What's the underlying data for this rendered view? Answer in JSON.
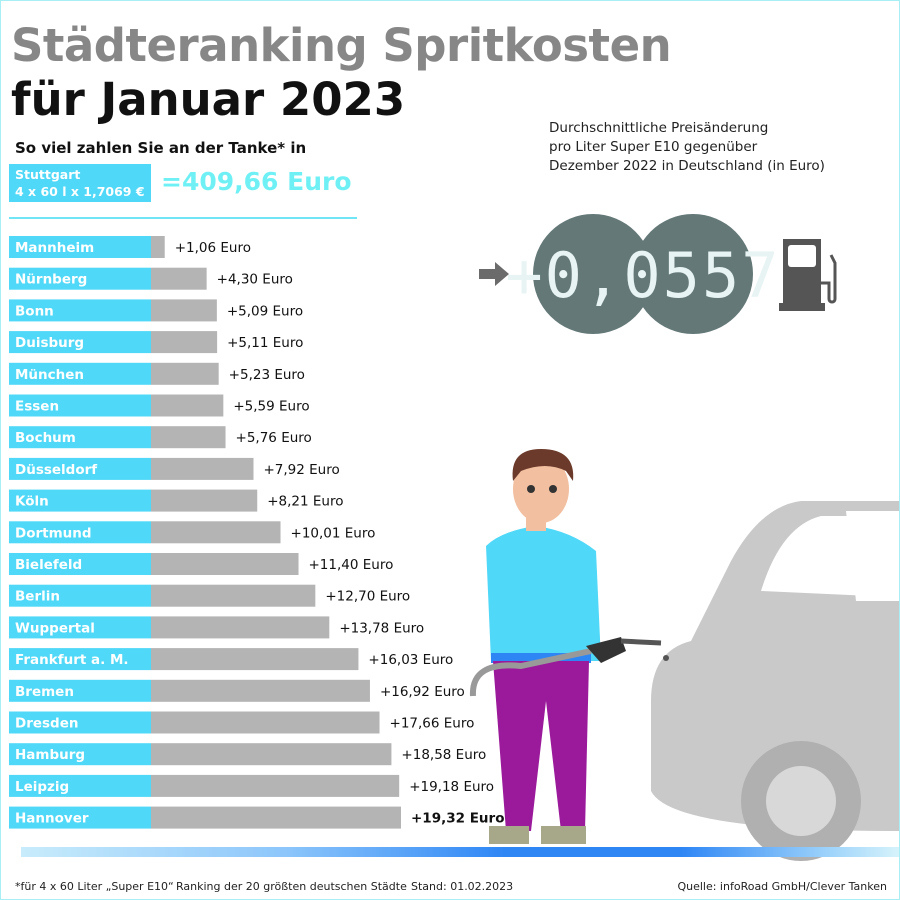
{
  "title_line1": "Städteranking Spritkosten",
  "title_line2": "für Januar 2023",
  "subtitle": "So viel zahlen Sie an der Tanke* in",
  "reference": {
    "city": "Stuttgart",
    "formula": "4 x 60 l x 1,7069 €",
    "total": "=409,66 Euro"
  },
  "side_note": [
    "Durchschnittliche Preisänderung",
    "pro Liter Super E10 gegenüber",
    "Dezember 2022 in Deutschland (in Euro)"
  ],
  "display_value": "+0,0557",
  "footer": {
    "footnote": "*für 4 x 60 Liter „Super E10“",
    "ranking": "Ranking der 20 größten deutschen Städte",
    "date": "Stand: 01.02.2023",
    "source": "Quelle: infoRoad GmbH/Clever Tanken"
  },
  "colors": {
    "label_box": "#4fd8f7",
    "bar": "#b4b4b4",
    "title_gray": "#878787",
    "display": "#647878"
  },
  "chart_data": {
    "type": "bar",
    "orientation": "horizontal",
    "categories": [
      "Mannheim",
      "Nürnberg",
      "Bonn",
      "Duisburg",
      "München",
      "Essen",
      "Bochum",
      "Düsseldorf",
      "Köln",
      "Dortmund",
      "Bielefeld",
      "Berlin",
      "Wuppertal",
      "Frankfurt a. M.",
      "Bremen",
      "Dresden",
      "Hamburg",
      "Leipzig",
      "Hannover"
    ],
    "values": [
      1.06,
      4.3,
      5.09,
      5.11,
      5.23,
      5.59,
      5.76,
      7.92,
      8.21,
      10.01,
      11.4,
      12.7,
      13.78,
      16.03,
      16.92,
      17.66,
      18.58,
      19.18,
      19.32
    ],
    "labels": [
      "+1,06 Euro",
      "+4,30 Euro",
      "+5,09 Euro",
      "+5,11 Euro",
      "+5,23 Euro",
      "+5,59 Euro",
      "+5,76 Euro",
      "+7,92 Euro",
      "+8,21 Euro",
      "+10,01 Euro",
      "+11,40 Euro",
      "+12,70 Euro",
      "+13,78 Euro",
      "+16,03 Euro",
      "+16,92 Euro",
      "+17,66 Euro",
      "+18,58 Euro",
      "+19,18 Euro",
      "+19,32 Euro"
    ]
  }
}
